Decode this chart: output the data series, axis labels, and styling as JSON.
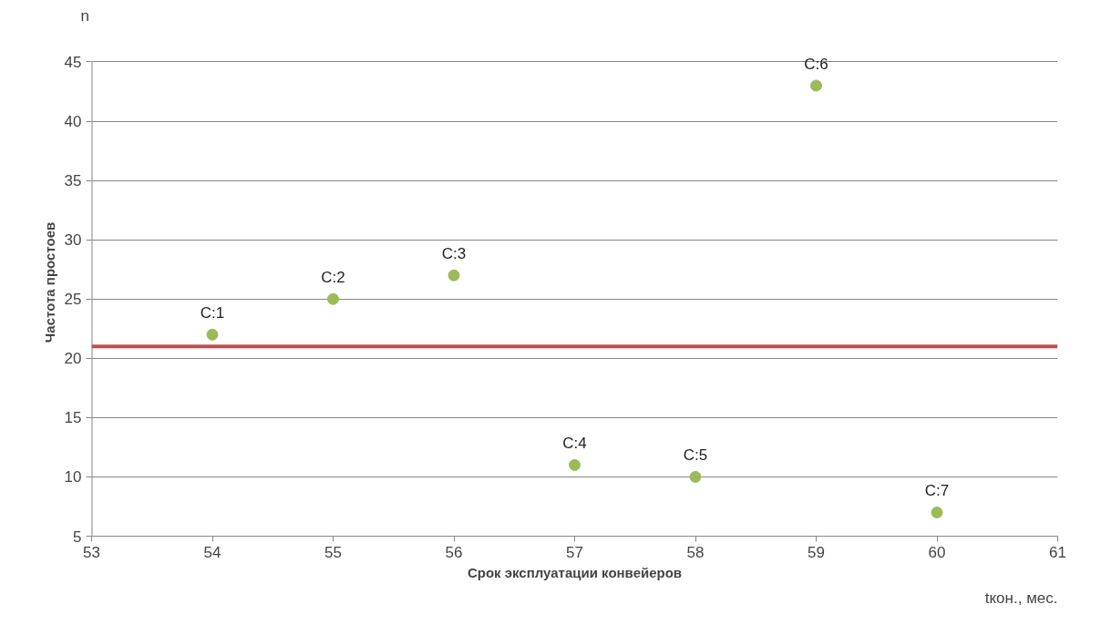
{
  "chart_data": {
    "type": "scatter",
    "xlabel": "Срок эксплуатации конвейеров",
    "ylabel": "Частота простоев",
    "x": [
      54,
      55,
      56,
      57,
      58,
      59,
      60
    ],
    "series": [
      {
        "color": "#9bbb59",
        "values": [
          22,
          25,
          27,
          11,
          10,
          43,
          7
        ]
      }
    ],
    "xlim": [
      53,
      61
    ],
    "xticks": [
      53,
      54,
      55,
      56,
      57,
      58,
      59,
      60,
      61
    ],
    "ylim": [
      5,
      45
    ],
    "yticks": [
      5,
      10,
      15,
      20,
      25,
      30,
      35,
      40,
      45
    ],
    "grid": "y",
    "marker": "circle",
    "ref_lines": [
      {
        "axis": "y",
        "value": 21,
        "color": "#c0504d"
      }
    ],
    "annotations": [
      "n",
      "tкон., мес.",
      {
        "text": "C:1",
        "x": 54,
        "y": 22
      },
      {
        "text": "C:2",
        "x": 55,
        "y": 25
      },
      {
        "text": "C:3",
        "x": 56,
        "y": 27
      },
      {
        "text": "C:4",
        "x": 57,
        "y": 11
      },
      {
        "text": "C:5",
        "x": 58,
        "y": 10
      },
      {
        "text": "C:6",
        "x": 59,
        "y": 43
      },
      {
        "text": "C:7",
        "x": 60,
        "y": 7
      }
    ]
  }
}
